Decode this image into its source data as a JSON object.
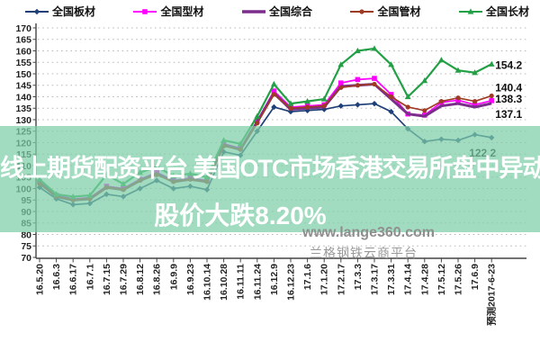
{
  "legend": [
    {
      "label": "全国板材",
      "color": "#1F3F77",
      "marker": "diamond"
    },
    {
      "label": "全国型材",
      "color": "#FF00FF",
      "marker": "square"
    },
    {
      "label": "全国综合",
      "color": "#7B2D8B",
      "marker": "none"
    },
    {
      "label": "全国管材",
      "color": "#9E3B25",
      "marker": "circle"
    },
    {
      "label": "全国长材",
      "color": "#23A046",
      "marker": "triangle"
    }
  ],
  "overlay": {
    "line1": "线上期货配资平台 美国OTC市场香港交易所盘中异动",
    "line2": "股价大跌8.20%",
    "band_color": "#7ECFA7",
    "band_opacity": 0.72,
    "text_color": "#FFFFFF"
  },
  "watermark": {
    "line1": "www.lange360.com",
    "line2": "兰格钢铁云商平台"
  },
  "chart_data": {
    "type": "line",
    "title": "",
    "xlabel": "",
    "ylabel": "",
    "ylim": [
      70,
      170
    ],
    "ytick_step": 5,
    "grid": true,
    "legend_position": "top",
    "categories": [
      "16.5.20",
      "16.6.3",
      "16.6.17",
      "16.7.1",
      "16.7.15",
      "16.7.29",
      "16.8.12",
      "16.8.26",
      "16.9.9",
      "16.9.23",
      "16.10.14",
      "16.10.28",
      "16.11.11",
      "16.11.24",
      "16.12.9",
      "16.12.23",
      "17.1.6",
      "17.1.20",
      "17.2.17",
      "17.3.3",
      "17.3.17",
      "17.3.31",
      "17.4.14",
      "17.4.28",
      "17.5.12",
      "17.5.26",
      "17.6.9",
      "预测2017-6-23"
    ],
    "series": [
      {
        "name": "全国板材",
        "color": "#1F3F77",
        "marker": "diamond",
        "width": 1.7,
        "end_label": "122.2",
        "values": [
          100.5,
          95.5,
          93,
          93.5,
          97.5,
          96.5,
          100,
          103.5,
          100,
          101,
          99.5,
          116,
          114.5,
          125,
          135.5,
          133.5,
          134,
          134.5,
          136,
          136.5,
          137,
          133.5,
          126,
          120.5,
          121.5,
          121,
          123.5,
          122.2
        ]
      },
      {
        "name": "全国型材",
        "color": "#FF00FF",
        "marker": "square",
        "width": 1.7,
        "end_label": "138.3",
        "values": [
          103,
          97,
          95.5,
          96,
          101,
          100,
          104,
          107,
          103.5,
          104.5,
          103.5,
          119.5,
          117.5,
          129.5,
          142.5,
          135.5,
          136,
          136.5,
          146,
          147.5,
          148,
          141,
          132.5,
          132,
          137.5,
          138.5,
          136.5,
          138.3
        ]
      },
      {
        "name": "全国综合",
        "color": "#7B2D8B",
        "marker": "none",
        "width": 3,
        "end_label": "137.1",
        "values": [
          102.5,
          96.5,
          95,
          95.5,
          100.5,
          99.5,
          103.5,
          106.5,
          103,
          104,
          103,
          119,
          117,
          129,
          141.5,
          134.5,
          135,
          135.5,
          144.5,
          145,
          145.5,
          139,
          132.5,
          131.5,
          136,
          137,
          135.5,
          137.1
        ]
      },
      {
        "name": "全国管材",
        "color": "#9E3B25",
        "marker": "circle",
        "width": 1.7,
        "end_label": "140.4",
        "values": [
          102,
          96.5,
          95,
          95.5,
          100.5,
          99.5,
          103.5,
          106,
          103,
          104,
          103,
          118.5,
          117,
          128.5,
          141,
          135,
          135.5,
          136,
          144,
          145,
          145.5,
          140,
          135.5,
          134,
          138,
          139.5,
          138,
          140.4
        ]
      },
      {
        "name": "全国长材",
        "color": "#23A046",
        "marker": "triangle",
        "width": 2.2,
        "end_label": "154.2",
        "values": [
          104,
          97.5,
          96.5,
          97,
          106,
          102,
          107,
          109.5,
          105.5,
          106.5,
          105,
          121,
          119.5,
          131.5,
          145.5,
          137,
          138,
          139,
          154,
          160,
          161,
          154,
          140,
          147,
          156,
          151.5,
          150.5,
          154.2
        ]
      }
    ],
    "forecast_note": "预测2017-6-23"
  }
}
